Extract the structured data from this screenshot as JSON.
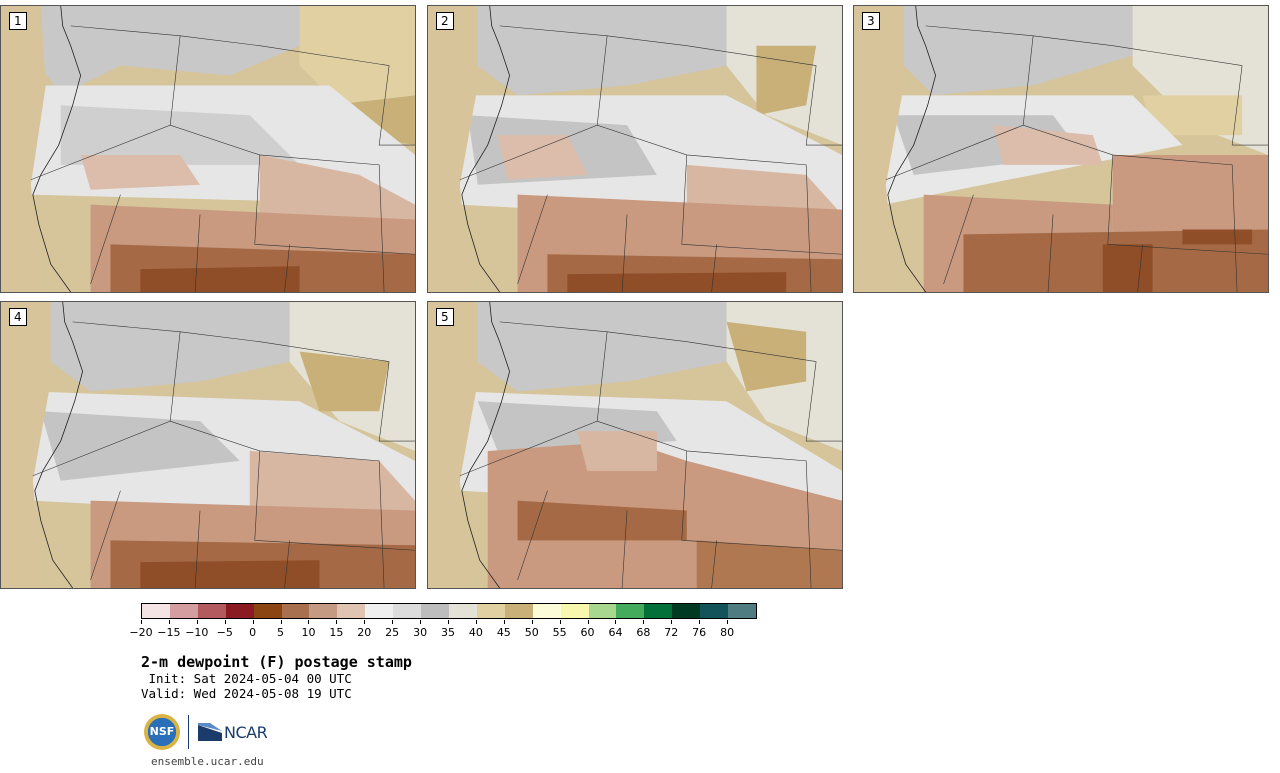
{
  "panels": [
    {
      "label": "1"
    },
    {
      "label": "2"
    },
    {
      "label": "3"
    },
    {
      "label": "4"
    },
    {
      "label": "5"
    }
  ],
  "colorbar": {
    "colors": [
      "#f5e4e4",
      "#d49ea0",
      "#b25a5e",
      "#8b1b22",
      "#8b4513",
      "#a8704e",
      "#c59a82",
      "#e0c4b2",
      "#efefef",
      "#dcdcdc",
      "#bdbdbd",
      "#e4e2d6",
      "#e0d0a2",
      "#c8b078",
      "#fdfcd9",
      "#f7f7ad",
      "#a8d890",
      "#44aa5c",
      "#03703a",
      "#003a22",
      "#13535a",
      "#4f7c80"
    ],
    "tick_labels": [
      "−20",
      "−15",
      "−10",
      "−5",
      "0",
      "5",
      "10",
      "15",
      "20",
      "25",
      "30",
      "35",
      "40",
      "45",
      "50",
      "55",
      "60",
      "64",
      "68",
      "72",
      "76",
      "80"
    ]
  },
  "title": "2-m dewpoint (F) postage stamp",
  "init": " Init: Sat 2024-05-04 00 UTC",
  "valid": "Valid: Wed 2024-05-08 19 UTC",
  "logos": {
    "nsf": "NSF",
    "ncar": "NCAR"
  },
  "footer_url": "ensemble.ucar.edu"
}
